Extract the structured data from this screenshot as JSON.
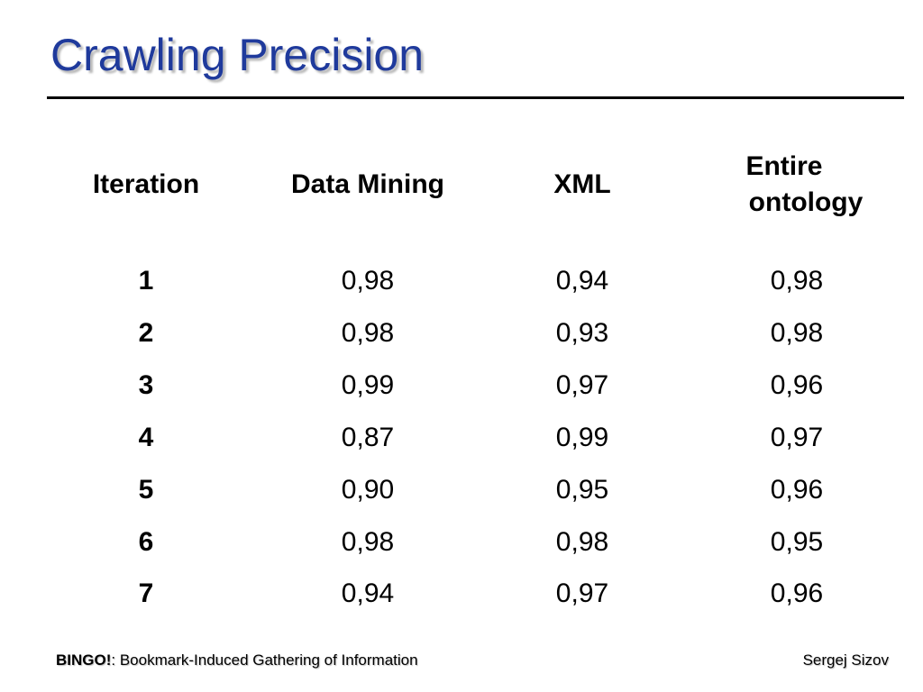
{
  "slide": {
    "title": "Crawling Precision"
  },
  "table": {
    "headers": {
      "iteration": "Iteration",
      "data_mining": "Data Mining",
      "xml": "XML",
      "entire_line1": "Entire",
      "entire_line2": "ontology"
    },
    "rows": [
      {
        "iteration": "1",
        "data_mining": "0,98",
        "xml": "0,94",
        "entire": "0,98"
      },
      {
        "iteration": "2",
        "data_mining": "0,98",
        "xml": "0,93",
        "entire": "0,98"
      },
      {
        "iteration": "3",
        "data_mining": "0,99",
        "xml": "0,97",
        "entire": "0,96"
      },
      {
        "iteration": "4",
        "data_mining": "0,87",
        "xml": "0,99",
        "entire": "0,97"
      },
      {
        "iteration": "5",
        "data_mining": "0,90",
        "xml": "0,95",
        "entire": "0,96"
      },
      {
        "iteration": "6",
        "data_mining": "0,98",
        "xml": "0,98",
        "entire": "0,95"
      },
      {
        "iteration": "7",
        "data_mining": "0,94",
        "xml": "0,97",
        "entire": "0,96"
      }
    ]
  },
  "footer": {
    "brand": "BINGO!",
    "tagline": ": Bookmark-Induced Gathering of Information",
    "author": "Sergej Sizov"
  },
  "colors": {
    "title": "#1f3a9c",
    "text": "#000000",
    "background": "#ffffff"
  }
}
